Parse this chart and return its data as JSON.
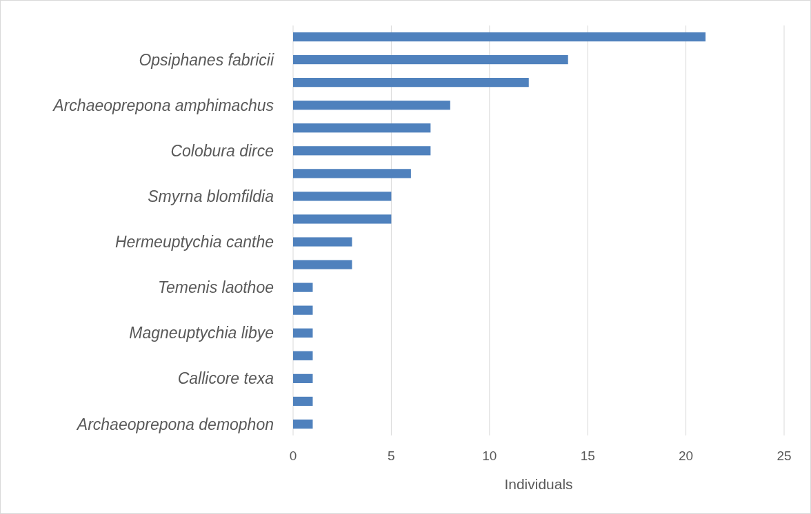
{
  "chart_data": {
    "type": "bar",
    "orientation": "horizontal",
    "xlabel": "Individuals",
    "categories": [
      null,
      "Opsiphanes fabricii",
      null,
      "Archaeoprepona amphimachus",
      null,
      "Colobura dirce",
      null,
      "Smyrna blomfildia",
      null,
      "Hermeuptychia canthe",
      null,
      "Temenis laothoe",
      null,
      "Magneuptychia libye",
      null,
      "Callicore texa",
      null,
      "Archaeoprepona demophon"
    ],
    "values": [
      21,
      14,
      12,
      8,
      7,
      7,
      6,
      5,
      5,
      3,
      3,
      1,
      1,
      1,
      1,
      1,
      1,
      1
    ],
    "color": "#4f81bd",
    "xlim": [
      0,
      25
    ],
    "xticks": [
      0,
      5,
      10,
      15,
      20,
      25
    ],
    "grid": "x"
  }
}
